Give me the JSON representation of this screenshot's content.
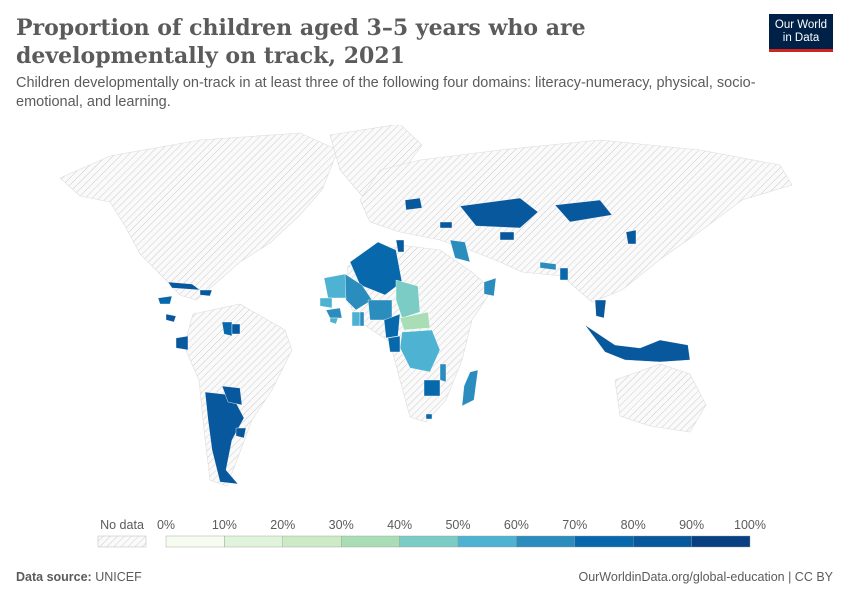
{
  "header": {
    "title": "Proportion of children aged 3–5 years who are developmentally on track, 2021",
    "subtitle": "Children developmentally on-track in at least three of the following four domains: literacy-numeracy, physical, socio-emotional, and learning."
  },
  "logo": {
    "text": "Our World in Data",
    "colors": {
      "bg": "#002147",
      "bar": "#ce261e"
    }
  },
  "legend": {
    "no_data_label": "No data",
    "ticks": [
      "0%",
      "10%",
      "20%",
      "30%",
      "40%",
      "50%",
      "60%",
      "70%",
      "80%",
      "90%",
      "100%"
    ],
    "colors": [
      "#f7fcf0",
      "#e0f3db",
      "#ccebc5",
      "#a8ddb5",
      "#7bccc4",
      "#4eb3d3",
      "#2b8cbe",
      "#0868ac",
      "#08589e",
      "#084081"
    ]
  },
  "chart_data": {
    "type": "map",
    "unit": "%",
    "range": [
      0,
      100
    ],
    "no_data_pattern": "grey-hatch",
    "countries": [
      {
        "name": "Argentina",
        "value": 85
      },
      {
        "name": "Paraguay",
        "value": 82
      },
      {
        "name": "Uruguay",
        "value": 88
      },
      {
        "name": "Cuba",
        "value": 82
      },
      {
        "name": "Dominican Republic",
        "value": 85
      },
      {
        "name": "Honduras",
        "value": 75
      },
      {
        "name": "Costa Rica",
        "value": 80
      },
      {
        "name": "Guyana",
        "value": 78
      },
      {
        "name": "Suriname",
        "value": 82
      },
      {
        "name": "Ecuador",
        "value": 80
      },
      {
        "name": "Algeria",
        "value": 78
      },
      {
        "name": "Tunisia",
        "value": 82
      },
      {
        "name": "Mauritania",
        "value": 55
      },
      {
        "name": "Mali",
        "value": 62
      },
      {
        "name": "Senegal",
        "value": 56
      },
      {
        "name": "Guinea",
        "value": 62
      },
      {
        "name": "Sierra Leone",
        "value": 55
      },
      {
        "name": "Ghana",
        "value": 52
      },
      {
        "name": "Togo",
        "value": 62
      },
      {
        "name": "Nigeria",
        "value": 60
      },
      {
        "name": "Cameroon",
        "value": 72
      },
      {
        "name": "Chad",
        "value": 42
      },
      {
        "name": "Central African Republic",
        "value": 35
      },
      {
        "name": "Democratic Republic of Congo",
        "value": 55
      },
      {
        "name": "Congo",
        "value": 70
      },
      {
        "name": "Zimbabwe",
        "value": 78
      },
      {
        "name": "Malawi",
        "value": 60
      },
      {
        "name": "Madagascar",
        "value": 65
      },
      {
        "name": "Eswatini",
        "value": 75
      },
      {
        "name": "Iraq",
        "value": 68
      },
      {
        "name": "Oman",
        "value": 65
      },
      {
        "name": "Kazakhstan",
        "value": 86
      },
      {
        "name": "Kyrgyzstan",
        "value": 80
      },
      {
        "name": "Mongolia",
        "value": 85
      },
      {
        "name": "Belarus",
        "value": 88
      },
      {
        "name": "Georgia",
        "value": 86
      },
      {
        "name": "Nepal",
        "value": 65
      },
      {
        "name": "Bangladesh",
        "value": 75
      },
      {
        "name": "Thailand",
        "value": 80
      },
      {
        "name": "Indonesia",
        "value": 80
      },
      {
        "name": "North Korea",
        "value": 85
      }
    ]
  },
  "footer": {
    "source_label": "Data source:",
    "source": "UNICEF",
    "url": "OurWorldinData.org/global-education | CC BY"
  }
}
